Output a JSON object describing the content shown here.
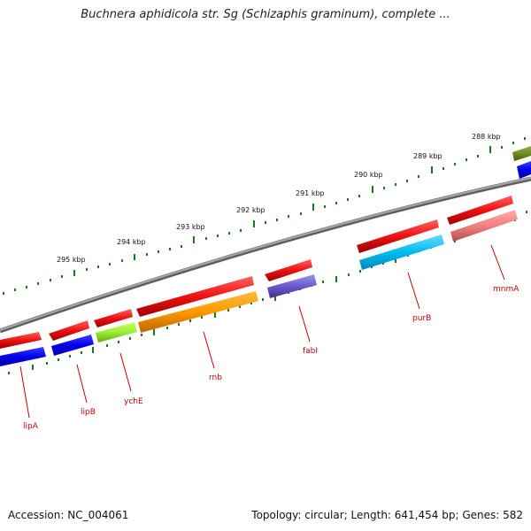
{
  "title": "Buchnera aphidicola str. Sg (Schizaphis graminum), complete ...",
  "footer": {
    "accession": "Accession: NC_004061",
    "topology": "Topology: circular; Length: 641,454 bp; Genes: 582"
  },
  "colors": {
    "backbone": "#808080",
    "tick": "#1a7a1a",
    "kbp_label": "#111111",
    "gene_label": "#cc0000",
    "cds_red": "#ee1111"
  },
  "kbp_labels": [
    "295 kbp",
    "294 kbp",
    "293 kbp",
    "292 kbp",
    "291 kbp",
    "290 kbp",
    "289 kbp",
    "288 kbp"
  ],
  "genes": [
    {
      "label": "lipA"
    },
    {
      "label": "lipB"
    },
    {
      "label": "ychE"
    },
    {
      "label": "rnb"
    },
    {
      "label": "fabI"
    },
    {
      "label": "purB"
    },
    {
      "label": "mnmA"
    }
  ]
}
